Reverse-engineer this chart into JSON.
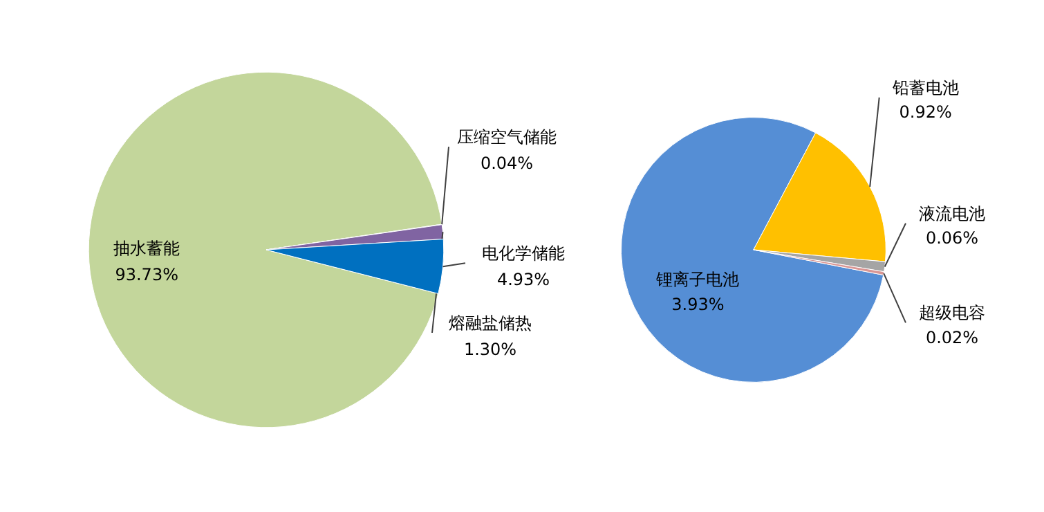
{
  "chart_data": [
    {
      "type": "pie",
      "categories": [
        "抽水蓄能",
        "压缩空气储能",
        "熔融盐储热",
        "电化学储能"
      ],
      "values": [
        93.73,
        0.04,
        1.3,
        4.93
      ],
      "colors": [
        "#c3d69b",
        "#4f81bd",
        "#8064a2",
        "#0070c0"
      ],
      "value_labels": [
        "93.73%",
        "0.04%",
        "1.30%",
        "4.93%"
      ]
    },
    {
      "type": "pie",
      "categories": [
        "锂离子电池",
        "铅蓄电池",
        "液流电池",
        "超级电容"
      ],
      "values": [
        3.93,
        0.92,
        0.06,
        0.02
      ],
      "colors": [
        "#558ed5",
        "#ffc000",
        "#a5a5a5",
        "#d99694"
      ],
      "value_labels": [
        "3.93%",
        "0.92%",
        "0.06%",
        "0.02%"
      ]
    }
  ]
}
